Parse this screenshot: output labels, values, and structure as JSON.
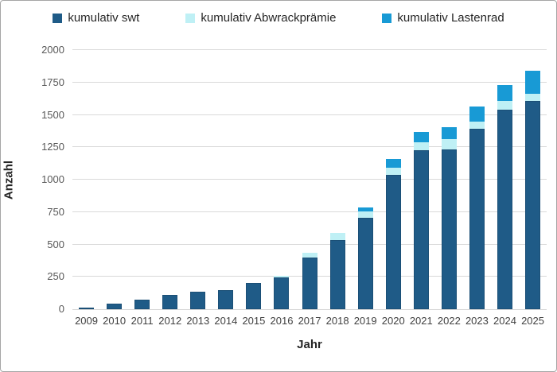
{
  "frame": {
    "border_color": "#a6a6a6",
    "background": "#ffffff"
  },
  "legend": {
    "position": "top",
    "items": [
      {
        "label": "kumulativ swt",
        "color": "#1f5b87"
      },
      {
        "label": "kumulativ Abwrackprämie",
        "color": "#bff0f5"
      },
      {
        "label": "kumulativ Lastenrad",
        "color": "#189ad5"
      }
    ]
  },
  "axes": {
    "x_title": "Jahr",
    "y_title": "Anzahl"
  },
  "chart_data": {
    "type": "bar",
    "stacked": true,
    "title": "",
    "xlabel": "Jahr",
    "ylabel": "Anzahl",
    "categories": [
      "2009",
      "2010",
      "2011",
      "2012",
      "2013",
      "2014",
      "2015",
      "2016",
      "2017",
      "2018",
      "2019",
      "2020",
      "2021",
      "2022",
      "2023",
      "2024",
      "2025"
    ],
    "series": [
      {
        "name": "kumulativ swt",
        "color": "#1f5b87",
        "values": [
          15,
          40,
          75,
          110,
          135,
          150,
          200,
          245,
          400,
          535,
          705,
          1035,
          1230,
          1235,
          1390,
          1540,
          1605
        ]
      },
      {
        "name": "kumulativ Abwrackprämie",
        "color": "#bff0f5",
        "values": [
          0,
          0,
          0,
          0,
          0,
          0,
          0,
          10,
          35,
          55,
          50,
          60,
          60,
          75,
          60,
          65,
          60
        ]
      },
      {
        "name": "kumulativ Lastenrad",
        "color": "#189ad5",
        "values": [
          0,
          0,
          0,
          0,
          0,
          0,
          0,
          0,
          0,
          0,
          30,
          65,
          80,
          95,
          115,
          125,
          175
        ]
      }
    ],
    "totals": [
      15,
      40,
      75,
      110,
      135,
      150,
      200,
      255,
      435,
      590,
      785,
      1160,
      1370,
      1405,
      1565,
      1730,
      1840
    ],
    "ylim": [
      0,
      2000
    ],
    "yticks": [
      0,
      250,
      500,
      750,
      1000,
      1250,
      1500,
      1750,
      2000
    ],
    "grid": "horizontal",
    "gridline_color": "#d9d9d9",
    "legend_position": "top"
  }
}
